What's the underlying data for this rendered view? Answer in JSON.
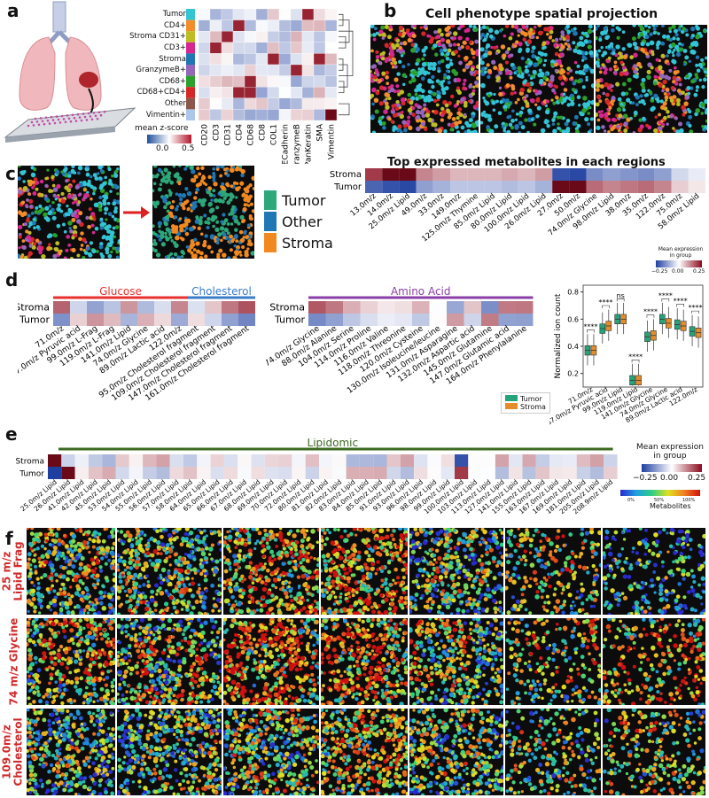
{
  "panels": {
    "a": "a",
    "b": "b",
    "c": "c",
    "d": "d",
    "e": "e",
    "f": "f"
  },
  "a": {
    "rows": [
      "Tumor",
      "CD4+",
      "Stroma CD31+",
      "CD3+",
      "Stroma",
      "GranzymeB+",
      "CD68+",
      "CD68+CD4+",
      "Other",
      "Vimentin+"
    ],
    "row_colors": [
      "#33c4d6",
      "#f28e2b",
      "#bcbd22",
      "#d62790",
      "#1f77b4",
      "#9467bd",
      "#2ca02c",
      "#d62728",
      "#8c564b",
      "#aec7e8"
    ],
    "cols": [
      "CD20",
      "CD3",
      "CD31",
      "CD4",
      "CD68",
      "CD8",
      "COL1",
      "ECadherin",
      "GranzymeB",
      "PanKeratin",
      "SMA",
      "Vimentin"
    ],
    "colorbar_title": "mean z-score",
    "colorbar_ticks": [
      "0.0",
      "0.5"
    ]
  },
  "b": {
    "title": "Cell phenotype spatial projection"
  },
  "c": {
    "legend": [
      {
        "label": "Tumor",
        "color": "#2ca87a"
      },
      {
        "label": "Other",
        "color": "#1f77b4"
      },
      {
        "label": "Stroma",
        "color": "#f2891e"
      }
    ],
    "heat_title": "Top expressed metabolites in each regions",
    "rows": [
      "Stroma",
      "Tumor"
    ],
    "cols": [
      "13.0m/z",
      "14.0m/z",
      "25.0m/z Lipid",
      "49.0m/z",
      "33.0m/z",
      "149.0m/z",
      "125.0m/z Thymine",
      "85.0m/z Lipid",
      "80.0m/z Lipid",
      "100.0m/z Lipid",
      "26.0m/z Lipid",
      "27.0m/z",
      "50.0m/z",
      "74.0m/z Glycine",
      "98.0m/z Lipid",
      "38.0m/z",
      "35.0m/z",
      "122.0m/z",
      "75.0m/z",
      "58.0m/z Lipid"
    ],
    "cb_title": "Mean expression\nin group",
    "cb_ticks": [
      "−0.25",
      "0.00",
      "0.25"
    ]
  },
  "d": {
    "groups": [
      {
        "label": "Glucose",
        "color": "#e8312f"
      },
      {
        "label": "Cholesterol",
        "color": "#3a7cc9"
      },
      {
        "label": "Amino Acid",
        "color": "#8a3fa8"
      }
    ],
    "rows": [
      "Stroma",
      "Tumor"
    ],
    "left_cols": [
      "71.0m/z",
      "87.0m/z Pyruvic acid",
      "99.0m/z L-Frag",
      "119.0m/z L-Frag",
      "141.0m/z Lipid",
      "74.0m/z Glycine",
      "89.0m/z Lactic acid",
      "122.0m/z",
      "95.0m/z Cholesterol fragment",
      "109.0m/z Cholesterol fragment",
      "147.0m/z Cholesterol fragment",
      "161.0m/z Cholesterol fragment"
    ],
    "right_cols": [
      "74.0m/z Glycine",
      "88.0m/z Alanine",
      "104.0m/z Serine",
      "114.0m/z Proline",
      "116.0m/z Valine",
      "118.0m/z Threonine",
      "120.0m/z Cysteine",
      "130.0m/z Isoleucine/leucine",
      "131.0m/z Asparagine",
      "132.0m/z Aspartic acid",
      "145.0m/z Glutamine",
      "147.0m/z Glutamic acid",
      "164.0m/z Phenylalanine"
    ],
    "legend": [
      {
        "label": "Tumor",
        "color": "#27a37a"
      },
      {
        "label": "Stroma",
        "color": "#e58d2b"
      }
    ]
  },
  "chart_data": {
    "type": "box",
    "ylabel": "Normalized ion count",
    "ylim": [
      0.1,
      0.85
    ],
    "yticks": [
      "0.2",
      "0.4",
      "0.6",
      "0.8"
    ],
    "categories": [
      "71.0m/z",
      "87.0m/z Pyruvic acid",
      "99.0m/z Lipid",
      "119.0m/z Lipid",
      "141.0m/z Glycine",
      "74.0m/z Glycine",
      "89.0m/z Lactic acid",
      "122.0m/z"
    ],
    "significance": [
      "****",
      "****",
      "ns",
      "****",
      "****",
      "****",
      "****",
      "****"
    ],
    "series": [
      {
        "name": "Tumor",
        "medians": [
          0.37,
          0.53,
          0.6,
          0.15,
          0.47,
          0.6,
          0.56,
          0.51
        ]
      },
      {
        "name": "Stroma",
        "medians": [
          0.37,
          0.55,
          0.6,
          0.15,
          0.48,
          0.57,
          0.55,
          0.5
        ]
      }
    ]
  },
  "e": {
    "group": "Lipidomic",
    "rows": [
      "Stroma",
      "Tumor"
    ],
    "cols": [
      "25.0m/z Lipid",
      "26.0m/z Lipid",
      "41.0m/z Lipid",
      "42.0m/z Lipid",
      "45.0m/z Lipid",
      "53.0m/z Lipid",
      "54.0m/z Lipid",
      "55.0m/z Lipid",
      "56.0m/z Lipid",
      "57.0m/z Lipid",
      "58.0m/z Lipid",
      "64.0m/z Lipid",
      "65.0m/z Lipid",
      "66.0m/z Lipid",
      "67.0m/z Lipid",
      "68.0m/z Lipid",
      "69.0m/z Lipid",
      "70.0m/z Lipid",
      "72.0m/z Lipid",
      "80.0m/z Lipid",
      "81.0m/z Lipid",
      "82.0m/z Lipid",
      "83.0m/z Lipid",
      "84.0m/z Lipid",
      "85.0m/z Lipid",
      "91.0m/z Lipid",
      "93.0m/z Lipid",
      "96.0m/z Lipid",
      "98.0m/z Lipid",
      "99.0m/z Lipid",
      "100.0m/z Lipid",
      "103.0m/z Lipid",
      "113.0m/z Lipid",
      "127.0m/z Lipid",
      "141.0m/z Lipid",
      "155.0m/z Lipid",
      "163.0m/z Lipid",
      "167.0m/z Lipid",
      "169.0m/z Lipid",
      "181.0m/z Lipid",
      "205.0m/z Lipid",
      "208.9m/z Lipid"
    ],
    "cb_title": "Mean expression\nin group",
    "cb_ticks": [
      "−0.25",
      "0.00",
      "0.25"
    ]
  },
  "f": {
    "rows": [
      "25 m/z\nLipid Frag",
      "74 m/z Glycine",
      "109.0m/z\nCholesterol"
    ],
    "cb_ticks": [
      "0%",
      "50%",
      "100%"
    ],
    "cb_title": "Metabolites"
  }
}
